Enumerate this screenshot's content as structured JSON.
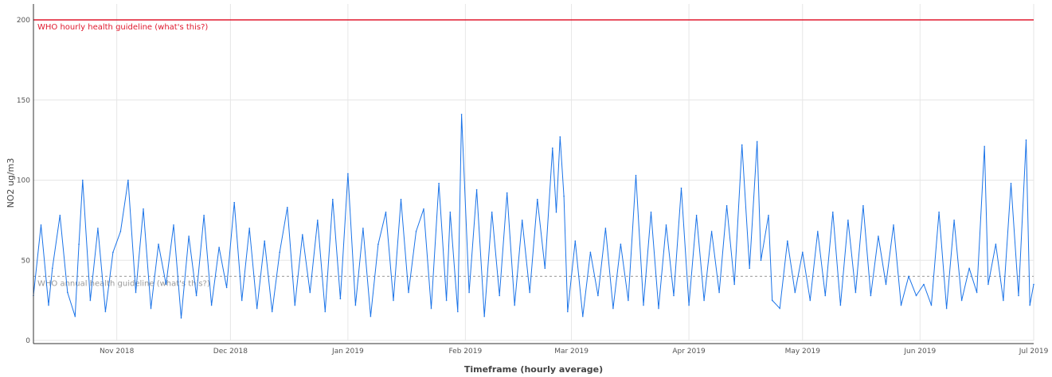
{
  "chart_data": {
    "type": "line",
    "xlabel": "Timeframe (hourly average)",
    "ylabel": "NO2 ug/m3",
    "x_range": [
      "2018-10-10",
      "2019-07-01"
    ],
    "ylim": [
      0,
      200
    ],
    "y_ticks": [
      0,
      50,
      100,
      150,
      200
    ],
    "x_ticks": [
      {
        "date": "2018-11-01",
        "label": "Nov 2018"
      },
      {
        "date": "2018-12-01",
        "label": "Dec 2018"
      },
      {
        "date": "2019-01-01",
        "label": "Jan 2019"
      },
      {
        "date": "2019-02-01",
        "label": "Feb 2019"
      },
      {
        "date": "2019-03-01",
        "label": "Mar 2019"
      },
      {
        "date": "2019-04-01",
        "label": "Apr 2019"
      },
      {
        "date": "2019-05-01",
        "label": "May 2019"
      },
      {
        "date": "2019-06-01",
        "label": "Jun 2019"
      },
      {
        "date": "2019-07-01",
        "label": "Jul 2019"
      }
    ],
    "grid": true,
    "reference_lines": [
      {
        "value": 200,
        "label": "WHO hourly health guideline (what's this?)",
        "color": "#e0192e",
        "style": "solid"
      },
      {
        "value": 40,
        "label": "WHO annual health guideline (what's this?)",
        "color": "#9a9a9a",
        "style": "dashed"
      }
    ],
    "series": [
      {
        "color": "#1a73e8",
        "points": [
          [
            "2018-10-10",
            28
          ],
          [
            "2018-10-12",
            72
          ],
          [
            "2018-10-14",
            22
          ],
          [
            "2018-10-15",
            45
          ],
          [
            "2018-10-17",
            78
          ],
          [
            "2018-10-19",
            30
          ],
          [
            "2018-10-21",
            15
          ],
          [
            "2018-10-22",
            60
          ],
          [
            "2018-10-23",
            100
          ],
          [
            "2018-10-25",
            25
          ],
          [
            "2018-10-27",
            70
          ],
          [
            "2018-10-29",
            18
          ],
          [
            "2018-10-31",
            55
          ],
          [
            "2018-11-02",
            68
          ],
          [
            "2018-11-04",
            100
          ],
          [
            "2018-11-06",
            30
          ],
          [
            "2018-11-08",
            82
          ],
          [
            "2018-11-10",
            20
          ],
          [
            "2018-11-12",
            60
          ],
          [
            "2018-11-14",
            35
          ],
          [
            "2018-11-16",
            72
          ],
          [
            "2018-11-18",
            14
          ],
          [
            "2018-11-20",
            65
          ],
          [
            "2018-11-22",
            28
          ],
          [
            "2018-11-24",
            78
          ],
          [
            "2018-11-26",
            22
          ],
          [
            "2018-11-28",
            58
          ],
          [
            "2018-11-30",
            33
          ],
          [
            "2018-12-02",
            86
          ],
          [
            "2018-12-04",
            25
          ],
          [
            "2018-12-06",
            70
          ],
          [
            "2018-12-08",
            20
          ],
          [
            "2018-12-10",
            62
          ],
          [
            "2018-12-12",
            18
          ],
          [
            "2018-12-14",
            55
          ],
          [
            "2018-12-16",
            83
          ],
          [
            "2018-12-18",
            22
          ],
          [
            "2018-12-20",
            66
          ],
          [
            "2018-12-22",
            30
          ],
          [
            "2018-12-24",
            75
          ],
          [
            "2018-12-26",
            18
          ],
          [
            "2018-12-28",
            88
          ],
          [
            "2018-12-30",
            26
          ],
          [
            "2019-01-01",
            104
          ],
          [
            "2019-01-03",
            22
          ],
          [
            "2019-01-05",
            70
          ],
          [
            "2019-01-07",
            15
          ],
          [
            "2019-01-09",
            60
          ],
          [
            "2019-01-11",
            80
          ],
          [
            "2019-01-13",
            25
          ],
          [
            "2019-01-15",
            88
          ],
          [
            "2019-01-17",
            30
          ],
          [
            "2019-01-19",
            68
          ],
          [
            "2019-01-21",
            82
          ],
          [
            "2019-01-23",
            20
          ],
          [
            "2019-01-25",
            98
          ],
          [
            "2019-01-27",
            25
          ],
          [
            "2019-01-28",
            80
          ],
          [
            "2019-01-30",
            18
          ],
          [
            "2019-01-31",
            141
          ],
          [
            "2019-02-02",
            30
          ],
          [
            "2019-02-04",
            94
          ],
          [
            "2019-02-06",
            15
          ],
          [
            "2019-02-08",
            80
          ],
          [
            "2019-02-10",
            28
          ],
          [
            "2019-02-12",
            92
          ],
          [
            "2019-02-14",
            22
          ],
          [
            "2019-02-16",
            75
          ],
          [
            "2019-02-18",
            30
          ],
          [
            "2019-02-20",
            88
          ],
          [
            "2019-02-22",
            45
          ],
          [
            "2019-02-24",
            120
          ],
          [
            "2019-02-25",
            80
          ],
          [
            "2019-02-26",
            127
          ],
          [
            "2019-02-27",
            90
          ],
          [
            "2019-02-28",
            18
          ],
          [
            "2019-03-02",
            62
          ],
          [
            "2019-03-04",
            15
          ],
          [
            "2019-03-06",
            55
          ],
          [
            "2019-03-08",
            28
          ],
          [
            "2019-03-10",
            70
          ],
          [
            "2019-03-12",
            20
          ],
          [
            "2019-03-14",
            60
          ],
          [
            "2019-03-16",
            25
          ],
          [
            "2019-03-18",
            103
          ],
          [
            "2019-03-20",
            22
          ],
          [
            "2019-03-22",
            80
          ],
          [
            "2019-03-24",
            20
          ],
          [
            "2019-03-26",
            72
          ],
          [
            "2019-03-28",
            28
          ],
          [
            "2019-03-30",
            95
          ],
          [
            "2019-04-01",
            22
          ],
          [
            "2019-04-03",
            78
          ],
          [
            "2019-04-05",
            25
          ],
          [
            "2019-04-07",
            68
          ],
          [
            "2019-04-09",
            30
          ],
          [
            "2019-04-11",
            84
          ],
          [
            "2019-04-13",
            35
          ],
          [
            "2019-04-15",
            122
          ],
          [
            "2019-04-17",
            45
          ],
          [
            "2019-04-19",
            124
          ],
          [
            "2019-04-20",
            50
          ],
          [
            "2019-04-22",
            78
          ],
          [
            "2019-04-23",
            25
          ],
          [
            "2019-04-25",
            20
          ],
          [
            "2019-04-27",
            62
          ],
          [
            "2019-04-29",
            30
          ],
          [
            "2019-05-01",
            55
          ],
          [
            "2019-05-03",
            25
          ],
          [
            "2019-05-05",
            68
          ],
          [
            "2019-05-07",
            28
          ],
          [
            "2019-05-09",
            80
          ],
          [
            "2019-05-11",
            22
          ],
          [
            "2019-05-13",
            75
          ],
          [
            "2019-05-15",
            30
          ],
          [
            "2019-05-17",
            84
          ],
          [
            "2019-05-19",
            28
          ],
          [
            "2019-05-21",
            65
          ],
          [
            "2019-05-23",
            35
          ],
          [
            "2019-05-25",
            72
          ],
          [
            "2019-05-27",
            22
          ],
          [
            "2019-05-29",
            40
          ],
          [
            "2019-05-31",
            28
          ],
          [
            "2019-06-02",
            35
          ],
          [
            "2019-06-04",
            22
          ],
          [
            "2019-06-06",
            80
          ],
          [
            "2019-06-08",
            20
          ],
          [
            "2019-06-10",
            75
          ],
          [
            "2019-06-12",
            25
          ],
          [
            "2019-06-14",
            45
          ],
          [
            "2019-06-16",
            30
          ],
          [
            "2019-06-18",
            121
          ],
          [
            "2019-06-19",
            35
          ],
          [
            "2019-06-21",
            60
          ],
          [
            "2019-06-23",
            25
          ],
          [
            "2019-06-25",
            98
          ],
          [
            "2019-06-27",
            28
          ],
          [
            "2019-06-29",
            125
          ],
          [
            "2019-06-30",
            22
          ],
          [
            "2019-07-01",
            35
          ]
        ]
      }
    ]
  }
}
